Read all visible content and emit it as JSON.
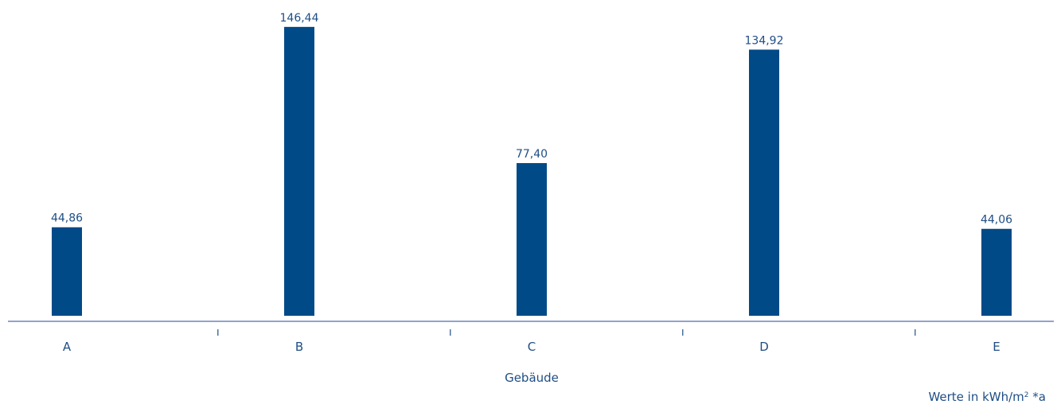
{
  "chart_data": {
    "type": "bar",
    "title": "",
    "xlabel": "Gebäude",
    "ylabel": "",
    "categories": [
      "A",
      "B",
      "C",
      "D",
      "E"
    ],
    "values": [
      44.86,
      146.44,
      77.4,
      134.92,
      44.06
    ],
    "value_labels": [
      "44,86",
      "146,44",
      "77,40",
      "134,92",
      "44,06"
    ],
    "ylim": [
      0,
      160
    ],
    "grid": false,
    "legend": "none",
    "unit_note": {
      "prefix": "Werte in kWh/m",
      "sup": "2",
      "suffix": " *a"
    },
    "colors": {
      "bar": "#004a87",
      "axis": "#8fa4cc",
      "text": "#1f4e85"
    }
  }
}
